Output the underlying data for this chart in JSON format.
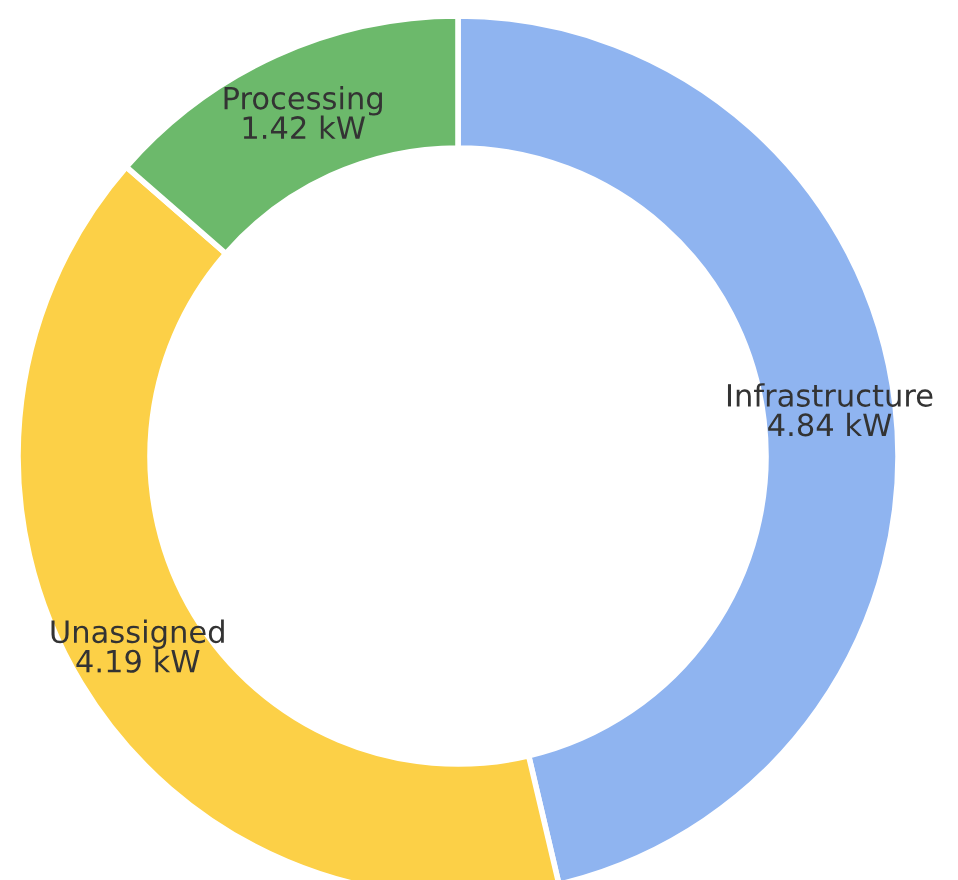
{
  "chart_data": {
    "type": "donut",
    "categories": [
      "Infrastructure",
      "Unassigned",
      "Processing"
    ],
    "values": [
      4.84,
      4.19,
      1.42
    ],
    "value_labels": [
      "4.84 kW",
      "4.19 kW",
      "1.42 kW"
    ],
    "colors": [
      "#8fb4f0",
      "#fcd047",
      "#6cb96b"
    ]
  }
}
